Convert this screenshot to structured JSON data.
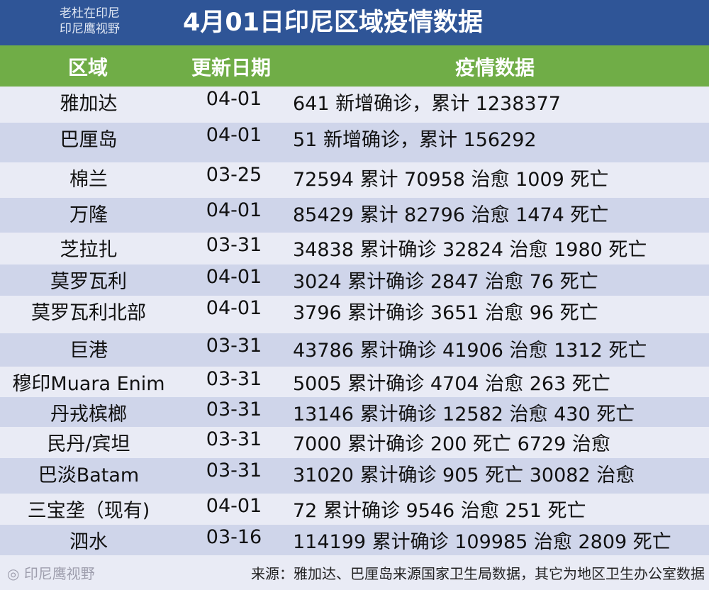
{
  "header": {
    "brand_line1": "老杜在印尼",
    "brand_line2": "印尼鹰视野",
    "title": "4月01日印尼区域疫情数据"
  },
  "columns": [
    "区域",
    "更新日期",
    "疫情数据"
  ],
  "rows": [
    {
      "region": "雅加达",
      "date": "04-01",
      "data": " 641 新增确诊，累计 1238377"
    },
    {
      "region": "巴厘岛",
      "date": "04-01",
      "data": "51 新增确诊，累计 156292"
    },
    {
      "region": "棉兰",
      "date": "03-25",
      "data": "72594 累计 70958 治愈 1009 死亡"
    },
    {
      "region": "万隆",
      "date": "04-01",
      "data": "85429  累计 82796 治愈 1474 死亡"
    },
    {
      "region": "芝拉扎",
      "date": "03-31",
      "data": "34838 累计确诊 32824 治愈 1980 死亡"
    },
    {
      "region": "莫罗瓦利",
      "date": "04-01",
      "data": "3024 累计确诊 2847 治愈 76 死亡"
    },
    {
      "region": "莫罗瓦利北部",
      "date": "04-01",
      "data": "3796 累计确诊 3651 治愈 96 死亡"
    },
    {
      "region": "巨港",
      "date": "03-31",
      "data": "43786 累计确诊 41906 治愈 1312 死亡"
    },
    {
      "region": "穆印Muara Enim",
      "date": "03-31",
      "data": "5005 累计确诊 4704 治愈 263 死亡"
    },
    {
      "region": "丹戎槟榔",
      "date": "03-31",
      "data": "13146 累计确诊 12582 治愈 430 死亡"
    },
    {
      "region": "民丹/宾坦",
      "date": "03-31",
      "data": "7000 累计确诊 200 死亡 6729 治愈"
    },
    {
      "region": "巴淡Batam",
      "date": "03-31",
      "data": "31020 累计确诊 905 死亡 30082 治愈"
    },
    {
      "region": "三宝垄（现有)",
      "date": "04-01",
      "data": "72 累计确诊 9546 治愈 251 死亡"
    },
    {
      "region": "泗水",
      "date": "03-16",
      "data": "114199 累计确诊 109985 治愈 2809 死亡"
    }
  ],
  "footer": {
    "source": "来源：雅加达、巴厘岛来源国家卫生局数据，其它为地区卫生办公室数据",
    "watermark": "印尼鹰视野"
  },
  "colors": {
    "title_bar": "#2f5597",
    "header": "#70ad47",
    "row_light": "#e9ebf5",
    "row_dark": "#cfd5ea"
  }
}
